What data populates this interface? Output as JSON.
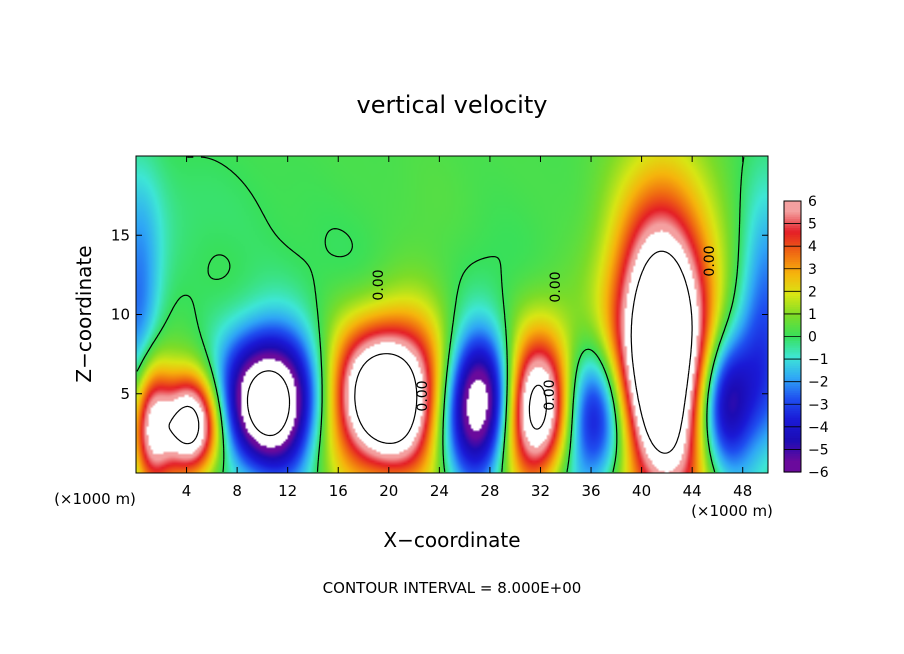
{
  "chart_data": {
    "type": "heatmap",
    "title": "vertical velocity",
    "xlabel": "X−coordinate",
    "ylabel": "Z−coordinate",
    "x_unit_left": "(×1000 m)",
    "x_unit_right": "(×1000 m)",
    "xlim": [
      0,
      50
    ],
    "ylim": [
      0,
      20
    ],
    "x_ticks": [
      4,
      8,
      12,
      16,
      20,
      24,
      28,
      32,
      36,
      40,
      44,
      48
    ],
    "y_ticks": [
      5,
      10,
      15
    ],
    "colorbar": {
      "ticks": [
        6,
        5,
        4,
        3,
        2,
        1,
        0,
        -1,
        -2,
        -3,
        -4,
        -5,
        -6
      ],
      "tick_labels": [
        "6",
        "5",
        "4",
        "3",
        "2",
        "1",
        "0",
        "−1",
        "−2",
        "−3",
        "−4",
        "−5",
        "−6"
      ],
      "colors": [
        [
          -6,
          "#6a0a9c"
        ],
        [
          -5,
          "#1c0cb4"
        ],
        [
          -4,
          "#1a1ad6"
        ],
        [
          -3,
          "#1f4ff0"
        ],
        [
          -2,
          "#2fa6f6"
        ],
        [
          -1,
          "#3ee6d6"
        ],
        [
          0,
          "#38e05a"
        ],
        [
          1,
          "#7cdc28"
        ],
        [
          2,
          "#d8e614"
        ],
        [
          3,
          "#f6b40c"
        ],
        [
          4,
          "#f06a12"
        ],
        [
          5,
          "#e41e26"
        ],
        [
          6,
          "#f4a0a0"
        ]
      ],
      "over_color": "#ffffff",
      "under_color": "#ffffff"
    },
    "contour_labels": [
      "0.00",
      "0.00",
      "0.00",
      "0.00",
      "0.00"
    ],
    "contour_interval_text": "CONTOUR INTERVAL =  8.000E+00",
    "features": [
      {
        "x": 1.2,
        "z": 3.2,
        "w": 6.5,
        "sx": 1.1,
        "sz": 3.0
      },
      {
        "x": 4.3,
        "z": 3.0,
        "w": 9.5,
        "sx": 1.6,
        "sz": 2.2
      },
      {
        "x": 10.7,
        "z": 4.5,
        "w": -10.5,
        "sx": 2.7,
        "sz": 3.0
      },
      {
        "x": 19.7,
        "z": 4.7,
        "w": 11.0,
        "sx": 3.2,
        "sz": 3.3
      },
      {
        "x": 27.2,
        "z": 4.3,
        "w": -10.0,
        "sx": 2.2,
        "sz": 3.1
      },
      {
        "x": 31.5,
        "z": 3.7,
        "w": 9.8,
        "sx": 2.1,
        "sz": 3.0
      },
      {
        "x": 36.1,
        "z": 3.6,
        "w": -6.5,
        "sx": 2.1,
        "sz": 3.4
      },
      {
        "x": 41.6,
        "z": 7.6,
        "w": 12.5,
        "sx": 2.7,
        "sz": 6.5
      },
      {
        "x": 46.6,
        "z": 4.5,
        "w": -6.8,
        "sx": 1.6,
        "sz": 3.0
      },
      {
        "x": 49.8,
        "z": 9.0,
        "w": -3.4,
        "sx": 1.5,
        "sz": 6.0
      },
      {
        "x": 0.2,
        "z": 10.0,
        "w": -3.0,
        "sx": 1.3,
        "sz": 5.5
      },
      {
        "x": 33.0,
        "z": 7.5,
        "w": 1.8,
        "sx": 3.0,
        "sz": 3.0
      },
      {
        "x": 23.0,
        "z": 9.5,
        "w": 1.0,
        "sx": 2.5,
        "sz": 5.0
      },
      {
        "x": 22.5,
        "z": 12.0,
        "w": -0.6,
        "sx": 7.0,
        "sz": 3.0
      },
      {
        "x": 2.0,
        "z": 16.5,
        "w": -0.5,
        "sx": 6.0,
        "sz": 3.0
      }
    ],
    "background": 0.25
  }
}
